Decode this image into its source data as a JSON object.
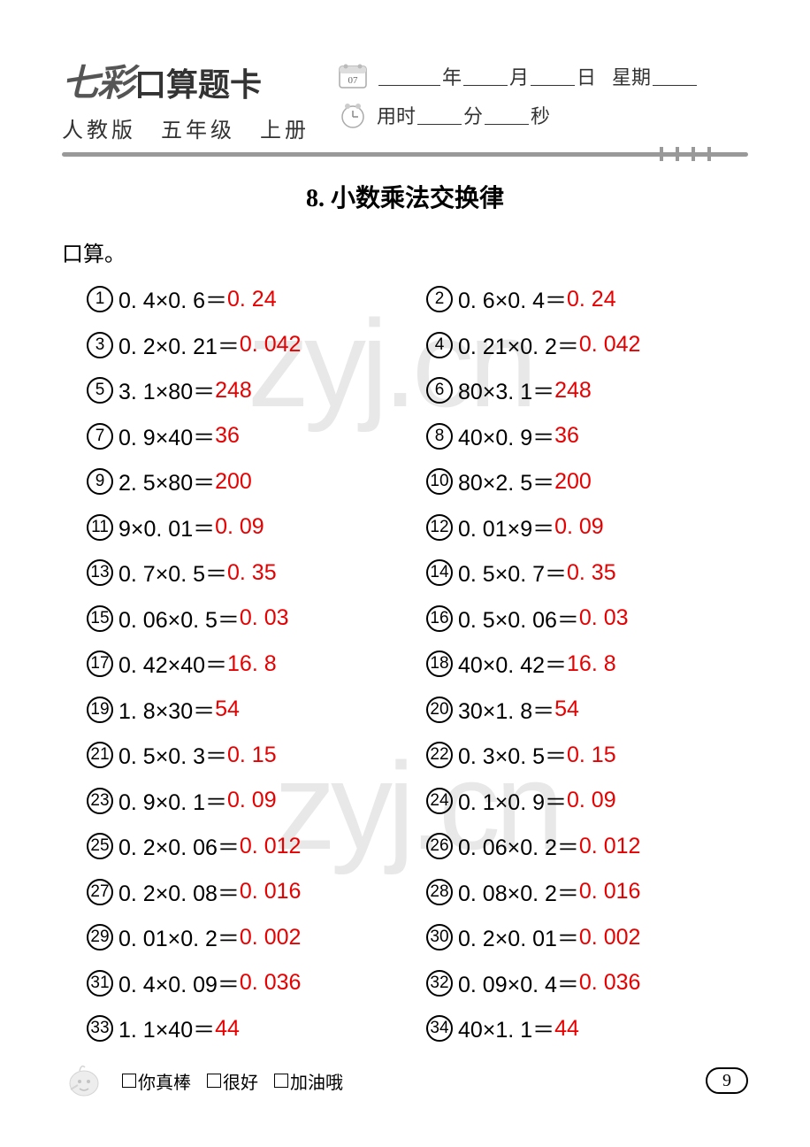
{
  "header": {
    "brand": "七彩",
    "title": "口算题卡",
    "subtitle": "人教版　五年级　上册",
    "date_labels": {
      "year": "年",
      "month": "月",
      "day": "日",
      "weekday": "星期"
    },
    "time_labels": {
      "prefix": "用时",
      "min": "分",
      "sec": "秒"
    },
    "calendar_num": "07"
  },
  "section": {
    "number": "8.",
    "title": "小数乘法交换律"
  },
  "type_label": "口算。",
  "problems": [
    {
      "n": "1",
      "expr": "0. 4×0. 6＝",
      "ans": "0. 24"
    },
    {
      "n": "2",
      "expr": "0. 6×0. 4＝",
      "ans": "0. 24"
    },
    {
      "n": "3",
      "expr": "0. 2×0. 21＝",
      "ans": "0. 042"
    },
    {
      "n": "4",
      "expr": "0. 21×0. 2＝",
      "ans": "0. 042"
    },
    {
      "n": "5",
      "expr": "3. 1×80＝",
      "ans": "248"
    },
    {
      "n": "6",
      "expr": "80×3. 1＝",
      "ans": "248"
    },
    {
      "n": "7",
      "expr": "0. 9×40＝",
      "ans": "36"
    },
    {
      "n": "8",
      "expr": "40×0. 9＝",
      "ans": "36"
    },
    {
      "n": "9",
      "expr": "2. 5×80＝",
      "ans": "200"
    },
    {
      "n": "10",
      "expr": "80×2. 5＝",
      "ans": "200"
    },
    {
      "n": "11",
      "expr": "9×0. 01＝",
      "ans": "0. 09"
    },
    {
      "n": "12",
      "expr": "0. 01×9＝",
      "ans": "0. 09"
    },
    {
      "n": "13",
      "expr": "0. 7×0. 5＝",
      "ans": "0. 35"
    },
    {
      "n": "14",
      "expr": "0. 5×0. 7＝",
      "ans": "0. 35"
    },
    {
      "n": "15",
      "expr": "0. 06×0. 5＝",
      "ans": "0. 03"
    },
    {
      "n": "16",
      "expr": "0. 5×0. 06＝",
      "ans": "0. 03"
    },
    {
      "n": "17",
      "expr": "0. 42×40＝",
      "ans": "16. 8"
    },
    {
      "n": "18",
      "expr": "40×0. 42＝",
      "ans": "16. 8"
    },
    {
      "n": "19",
      "expr": "1. 8×30＝",
      "ans": "54"
    },
    {
      "n": "20",
      "expr": "30×1. 8＝",
      "ans": "54"
    },
    {
      "n": "21",
      "expr": "0. 5×0. 3＝",
      "ans": "0. 15"
    },
    {
      "n": "22",
      "expr": "0. 3×0. 5＝",
      "ans": "0. 15"
    },
    {
      "n": "23",
      "expr": "0. 9×0. 1＝",
      "ans": "0. 09"
    },
    {
      "n": "24",
      "expr": "0. 1×0. 9＝",
      "ans": "0. 09"
    },
    {
      "n": "25",
      "expr": "0. 2×0. 06＝",
      "ans": "0. 012"
    },
    {
      "n": "26",
      "expr": "0. 06×0. 2＝",
      "ans": "0. 012"
    },
    {
      "n": "27",
      "expr": "0. 2×0. 08＝",
      "ans": "0. 016"
    },
    {
      "n": "28",
      "expr": "0. 08×0. 2＝",
      "ans": "0. 016"
    },
    {
      "n": "29",
      "expr": "0. 01×0. 2＝",
      "ans": "0. 002"
    },
    {
      "n": "30",
      "expr": "0. 2×0. 01＝",
      "ans": "0. 002"
    },
    {
      "n": "31",
      "expr": "0. 4×0. 09＝",
      "ans": "0. 036"
    },
    {
      "n": "32",
      "expr": "0. 09×0. 4＝",
      "ans": "0. 036"
    },
    {
      "n": "33",
      "expr": "1. 1×40＝",
      "ans": "44"
    },
    {
      "n": "34",
      "expr": "40×1. 1＝",
      "ans": "44"
    }
  ],
  "footer": {
    "ratings": [
      "你真棒",
      "很好",
      "加油哦"
    ],
    "page": "9"
  },
  "watermark": "zyj.cn",
  "colors": {
    "answer": "#e80000",
    "divider": "#999999",
    "text": "#333333"
  }
}
